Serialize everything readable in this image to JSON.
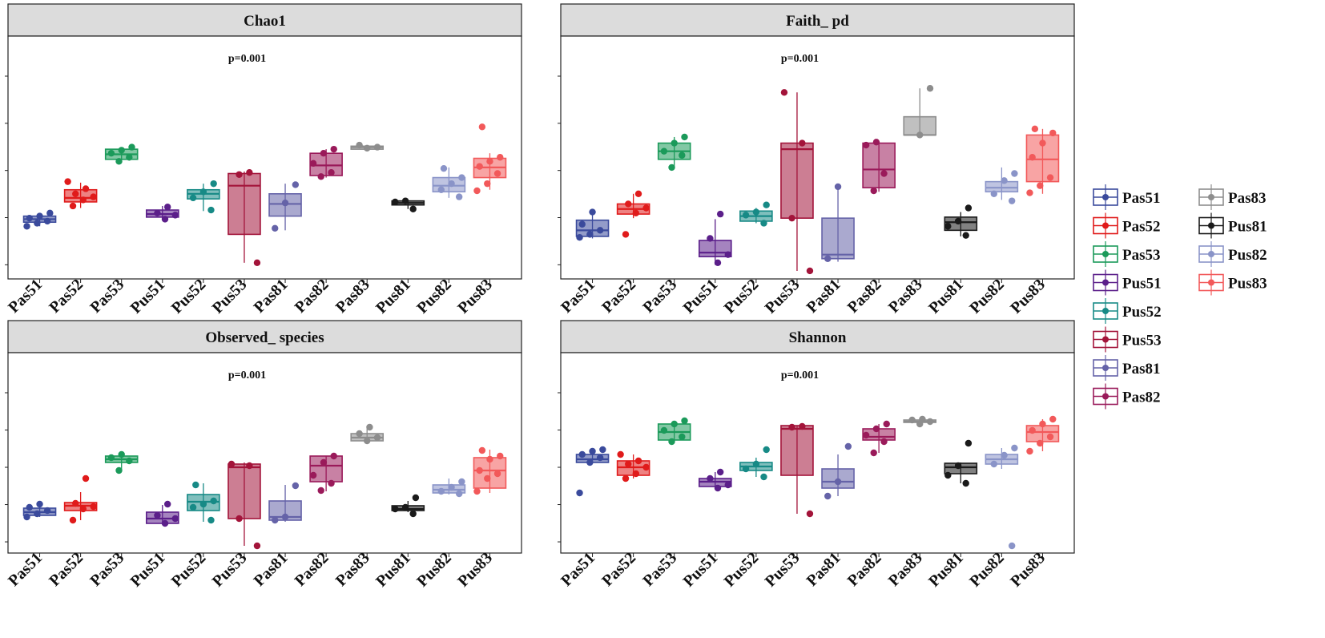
{
  "chart_data": [
    {
      "type": "boxplot",
      "title": "Chao1",
      "p_label": "p=0.001",
      "categories": [
        "Pas51",
        "Pas52",
        "Pas53",
        "Pus51",
        "Pus52",
        "Pus53",
        "Pas81",
        "Pas82",
        "Pas83",
        "Pus81",
        "Pus82",
        "Pus83"
      ],
      "ylim": [
        0,
        100
      ],
      "boxes": [
        {
          "q1": 26,
          "median": 27.5,
          "q3": 29,
          "lo": 24,
          "hi": 30,
          "points": [
            24,
            25.5,
            26.5,
            28,
            29,
            30.5
          ]
        },
        {
          "q1": 36,
          "median": 38,
          "q3": 42,
          "lo": 33,
          "hi": 45.5,
          "points": [
            34,
            37,
            38.5,
            40,
            42.5,
            46
          ]
        },
        {
          "q1": 57,
          "median": 59.5,
          "q3": 62,
          "lo": 56,
          "hi": 63,
          "points": [
            56,
            58,
            60,
            61.5,
            63
          ]
        },
        {
          "q1": 28.5,
          "median": 30,
          "q3": 32,
          "lo": 27.5,
          "hi": 34,
          "points": [
            27.5,
            29.5,
            30.5,
            33.5
          ]
        },
        {
          "q1": 37.5,
          "median": 40,
          "q3": 42,
          "lo": 31.5,
          "hi": 45,
          "points": [
            32,
            38,
            41,
            45
          ]
        },
        {
          "q1": 20,
          "median": 44,
          "q3": 50,
          "lo": 6,
          "hi": 51,
          "points": [
            6,
            49.5,
            50.5
          ]
        },
        {
          "q1": 29,
          "median": 35,
          "q3": 40,
          "lo": 22,
          "hi": 45,
          "points": [
            23,
            35.5,
            44.5
          ]
        },
        {
          "q1": 49,
          "median": 54,
          "q3": 60,
          "lo": 48,
          "hi": 62,
          "points": [
            48.5,
            50.5,
            55,
            60,
            62
          ]
        },
        {
          "q1": 62,
          "median": 63,
          "q3": 63.5,
          "lo": 62,
          "hi": 64,
          "points": [
            62.5,
            63,
            64
          ]
        },
        {
          "q1": 34.5,
          "median": 35.5,
          "q3": 36.5,
          "lo": 32.5,
          "hi": 36.5,
          "points": [
            32.5,
            36,
            36.5
          ]
        },
        {
          "q1": 41,
          "median": 44,
          "q3": 48,
          "lo": 38,
          "hi": 53,
          "points": [
            38.5,
            42,
            45,
            48,
            52.5
          ]
        },
        {
          "q1": 48,
          "median": 53,
          "q3": 57.5,
          "lo": 42,
          "hi": 60,
          "points": [
            41.5,
            45,
            50,
            53.5,
            56,
            58,
            73
          ]
        }
      ]
    },
    {
      "type": "boxplot",
      "title": "Faith_ pd",
      "p_label": "p=0.001",
      "categories": [
        "Pas51",
        "Pas52",
        "Pas53",
        "Pus51",
        "Pus52",
        "Pus53",
        "Pas81",
        "Pas82",
        "Pas83",
        "Pus81",
        "Pus82",
        "Pus83"
      ],
      "ylim": [
        0,
        100
      ],
      "boxes": [
        {
          "q1": 19,
          "median": 22,
          "q3": 27,
          "lo": 18,
          "hi": 31,
          "points": [
            18.5,
            20,
            22,
            25,
            31
          ]
        },
        {
          "q1": 30,
          "median": 32.5,
          "q3": 35,
          "lo": 28,
          "hi": 40,
          "points": [
            20,
            30.5,
            33,
            35,
            40
          ]
        },
        {
          "q1": 57,
          "median": 61,
          "q3": 65,
          "lo": 53,
          "hi": 68,
          "points": [
            53,
            59,
            61,
            65,
            68
          ]
        },
        {
          "q1": 9,
          "median": 11,
          "q3": 17,
          "lo": 5,
          "hi": 27.5,
          "points": [
            6,
            10,
            18,
            30
          ]
        },
        {
          "q1": 26.5,
          "median": 29,
          "q3": 31.5,
          "lo": 25.5,
          "hi": 33,
          "points": [
            25.5,
            29.5,
            31,
            34.5
          ]
        },
        {
          "q1": 28,
          "median": 62,
          "q3": 65,
          "lo": 2,
          "hi": 90,
          "points": [
            2,
            28,
            65,
            90
          ]
        },
        {
          "q1": 8,
          "median": 10,
          "q3": 28,
          "lo": 6.5,
          "hi": 43,
          "points": [
            8,
            43.5
          ]
        },
        {
          "q1": 43,
          "median": 52,
          "q3": 65,
          "lo": 41,
          "hi": 66,
          "points": [
            41.5,
            50,
            64,
            65.5
          ]
        },
        {
          "q1": 69,
          "median": 69,
          "q3": 78,
          "lo": 69,
          "hi": 92,
          "points": [
            69,
            92
          ]
        },
        {
          "q1": 22,
          "median": 26,
          "q3": 28.5,
          "lo": 19,
          "hi": 31,
          "points": [
            19.5,
            24,
            26.5,
            33
          ]
        },
        {
          "q1": 41,
          "median": 43,
          "q3": 46,
          "lo": 37,
          "hi": 53,
          "points": [
            36.5,
            40,
            46.5,
            50
          ]
        },
        {
          "q1": 46,
          "median": 57,
          "q3": 69,
          "lo": 40,
          "hi": 72,
          "points": [
            40.5,
            44,
            48,
            58,
            65,
            70,
            72
          ]
        }
      ]
    },
    {
      "type": "boxplot",
      "title": "Observed_ species",
      "p_label": "p=0.001",
      "categories": [
        "Pas51",
        "Pas52",
        "Pas53",
        "Pus51",
        "Pus52",
        "Pus53",
        "Pas81",
        "Pas82",
        "Pas83",
        "Pus81",
        "Pus82",
        "Pus83"
      ],
      "ylim": [
        0,
        100
      ],
      "boxes": [
        {
          "q1": 21,
          "median": 23,
          "q3": 25.5,
          "lo": 20,
          "hi": 28,
          "points": [
            20,
            22,
            24,
            26,
            28
          ]
        },
        {
          "q1": 24,
          "median": 27,
          "q3": 29,
          "lo": 18,
          "hi": 35.5,
          "points": [
            18,
            25,
            26.5,
            28.5,
            44
          ]
        },
        {
          "q1": 54,
          "median": 56,
          "q3": 58,
          "lo": 49,
          "hi": 59,
          "points": [
            49,
            55,
            57,
            59
          ]
        },
        {
          "q1": 16,
          "median": 19,
          "q3": 23,
          "lo": 15.5,
          "hi": 27.5,
          "points": [
            16,
            19,
            21,
            28
          ]
        },
        {
          "q1": 24,
          "median": 29.5,
          "q3": 34,
          "lo": 17,
          "hi": 41,
          "points": [
            18,
            26,
            28,
            30,
            40
          ]
        },
        {
          "q1": 19,
          "median": 51,
          "q3": 53,
          "lo": 2,
          "hi": 54,
          "points": [
            2,
            19,
            52,
            53
          ]
        },
        {
          "q1": 18,
          "median": 20,
          "q3": 30,
          "lo": 17,
          "hi": 40,
          "points": [
            18,
            20,
            39.5
          ]
        },
        {
          "q1": 42,
          "median": 52,
          "q3": 58,
          "lo": 36,
          "hi": 58,
          "points": [
            36.5,
            41,
            46,
            54,
            58
          ]
        },
        {
          "q1": 67.5,
          "median": 69.5,
          "q3": 72,
          "lo": 67,
          "hi": 76,
          "points": [
            67.5,
            69.5,
            72,
            76
          ]
        },
        {
          "q1": 24,
          "median": 25,
          "q3": 27,
          "lo": 23,
          "hi": 30,
          "points": [
            22,
            25,
            26,
            32
          ]
        },
        {
          "q1": 35,
          "median": 37,
          "q3": 40,
          "lo": 34,
          "hi": 44,
          "points": [
            34.5,
            36,
            38.5,
            42
          ]
        },
        {
          "q1": 38,
          "median": 49,
          "q3": 57,
          "lo": 35,
          "hi": 62,
          "points": [
            36,
            44,
            47,
            49,
            56,
            58,
            61.5
          ]
        }
      ]
    },
    {
      "type": "boxplot",
      "title": "Shannon",
      "p_label": "p=0.001",
      "categories": [
        "Pas51",
        "Pas52",
        "Pas53",
        "Pus51",
        "Pus52",
        "Pus53",
        "Pas81",
        "Pas82",
        "Pas83",
        "Pus81",
        "Pus82",
        "Pus83"
      ],
      "ylim": [
        0,
        100
      ],
      "boxes": [
        {
          "q1": 54,
          "median": 56,
          "q3": 59,
          "lo": 54,
          "hi": 62,
          "points": [
            35,
            54,
            57,
            59,
            61,
            62
          ]
        },
        {
          "q1": 46,
          "median": 51,
          "q3": 55,
          "lo": 44,
          "hi": 59,
          "points": [
            44,
            47,
            51,
            53,
            55,
            59
          ]
        },
        {
          "q1": 68,
          "median": 73,
          "q3": 78,
          "lo": 67,
          "hi": 79,
          "points": [
            67,
            70,
            74,
            78,
            80
          ]
        },
        {
          "q1": 39,
          "median": 42,
          "q3": 44,
          "lo": 38,
          "hi": 48,
          "points": [
            38,
            40,
            44,
            48
          ]
        },
        {
          "q1": 49,
          "median": 51.5,
          "q3": 54,
          "lo": 45,
          "hi": 57,
          "points": [
            45,
            50,
            53,
            62
          ]
        },
        {
          "q1": 46,
          "median": 75,
          "q3": 77,
          "lo": 22,
          "hi": 77,
          "points": [
            22,
            76,
            76.5
          ]
        },
        {
          "q1": 38,
          "median": 42,
          "q3": 50,
          "lo": 33,
          "hi": 59,
          "points": [
            33,
            42,
            64
          ]
        },
        {
          "q1": 68,
          "median": 70,
          "q3": 75,
          "lo": 60,
          "hi": 78,
          "points": [
            60,
            67,
            71,
            75,
            78
          ]
        },
        {
          "q1": 79,
          "median": 79.5,
          "q3": 80.5,
          "lo": 78,
          "hi": 81,
          "points": [
            78,
            79.5,
            80.5,
            81
          ]
        },
        {
          "q1": 47,
          "median": 51,
          "q3": 53.5,
          "lo": 41,
          "hi": 54,
          "points": [
            41,
            46,
            52,
            66
          ]
        },
        {
          "q1": 53,
          "median": 56,
          "q3": 59,
          "lo": 50,
          "hi": 63,
          "points": [
            2,
            53,
            58.5,
            63
          ]
        },
        {
          "q1": 67,
          "median": 73,
          "q3": 77,
          "lo": 61,
          "hi": 81,
          "points": [
            61,
            66,
            70,
            74,
            78,
            81
          ]
        }
      ]
    }
  ],
  "legend": {
    "items": [
      {
        "label": "Pas51",
        "color": "#3a4a9c"
      },
      {
        "label": "Pas52",
        "color": "#e01b1b"
      },
      {
        "label": "Pas53",
        "color": "#1b9a5a"
      },
      {
        "label": "Pus51",
        "color": "#5b1f8a"
      },
      {
        "label": "Pus52",
        "color": "#178a86"
      },
      {
        "label": "Pus53",
        "color": "#a3143a"
      },
      {
        "label": "Pas81",
        "color": "#6563a8"
      },
      {
        "label": "Pas82",
        "color": "#9a1a5a"
      },
      {
        "label": "Pas83",
        "color": "#8d8d8d"
      },
      {
        "label": "Pus81",
        "color": "#1a1a1a"
      },
      {
        "label": "Pus82",
        "color": "#8a94c8"
      },
      {
        "label": "Pus83",
        "color": "#f2595a"
      }
    ]
  },
  "colors": {
    "strip_bg": "#dcdcdc",
    "panel_border": "#222222"
  }
}
